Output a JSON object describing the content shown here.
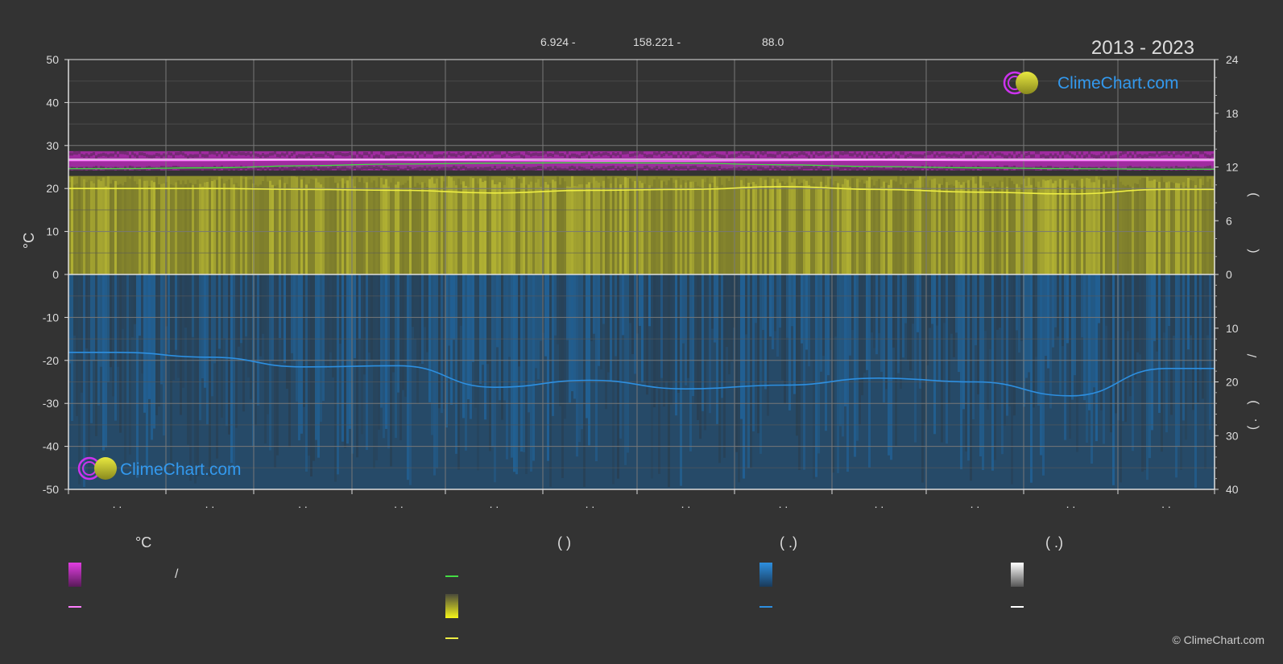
{
  "header": {
    "lat_text": "6.924 -",
    "lon_text": "158.221 -",
    "elev_text": "88.0",
    "period": "2013 - 2023"
  },
  "colors": {
    "background": "#333333",
    "temp_band": "#d21ed2",
    "temp_mean": "#ff7eff",
    "dewpoint": "#44dd44",
    "sunshine_band": "#b9b92c",
    "sunshine_mean": "#eeee44",
    "precip_band": "#1f5f99",
    "precip_mean": "#2d8fe0",
    "snow": "#ffffff",
    "brand_blue": "#3399ee"
  },
  "chart_data": {
    "type": "line",
    "x_tick_labels": [
      ". .",
      ". .",
      ". .",
      ". .",
      ". .",
      ". .",
      ". .",
      ". .",
      ". .",
      ". .",
      ". .",
      ". ."
    ],
    "y_left": {
      "label": "°C",
      "ticks": [
        50,
        40,
        30,
        20,
        10,
        0,
        -10,
        -20,
        -30,
        -40,
        -50
      ],
      "range": [
        -50,
        50
      ]
    },
    "y_right_top": {
      "labels": [
        "24",
        "18",
        "12",
        "6",
        "0"
      ],
      "range": [
        0,
        24
      ],
      "side_text": [
        ")",
        "("
      ]
    },
    "y_right_bottom": {
      "labels": [
        "0",
        "10",
        "20",
        "30",
        "40"
      ],
      "range": [
        0,
        40
      ],
      "side_text": [
        "/",
        ")",
        "( ."
      ]
    },
    "series": [
      {
        "key": "temp_max",
        "values": [
          28.0,
          28.0,
          28.1,
          28.1,
          28.0,
          28.1,
          28.2,
          28.3,
          28.3,
          28.2,
          28.1,
          28.0
        ]
      },
      {
        "key": "temp_min",
        "values": [
          24.9,
          24.9,
          25.0,
          25.0,
          24.8,
          24.7,
          24.6,
          24.7,
          24.8,
          24.8,
          24.9,
          24.9
        ]
      },
      {
        "key": "temp_mean",
        "values": [
          26.5,
          26.5,
          26.6,
          26.6,
          26.5,
          26.4,
          26.4,
          26.5,
          26.6,
          26.5,
          26.5,
          26.5
        ]
      },
      {
        "key": "dewpoint",
        "values": [
          24.6,
          24.8,
          25.3,
          25.7,
          25.9,
          26.0,
          25.9,
          25.5,
          25.1,
          24.8,
          24.6,
          24.5
        ]
      },
      {
        "key": "daylight_hours",
        "values": [
          11.0,
          11.0,
          11.0,
          11.0,
          11.0,
          11.0,
          11.0,
          11.0,
          11.0,
          11.0,
          11.0,
          11.0
        ]
      },
      {
        "key": "sunshine_hours",
        "values": [
          9.6,
          9.6,
          9.5,
          9.4,
          9.1,
          9.4,
          9.5,
          9.8,
          9.5,
          9.2,
          9.0,
          9.5
        ]
      },
      {
        "key": "precip_mm_day",
        "values": [
          14.5,
          15.4,
          17.2,
          17.0,
          21.0,
          19.7,
          21.3,
          20.6,
          19.3,
          20.0,
          22.6,
          17.5
        ]
      }
    ]
  },
  "legend": {
    "headers": [
      "°C",
      "(          )",
      "(   .)",
      "(   .)"
    ],
    "temp_range_text": "/"
  },
  "footer": {
    "copyright": "© ClimeChart.com"
  },
  "brand": {
    "name": "ClimeChart.com"
  }
}
